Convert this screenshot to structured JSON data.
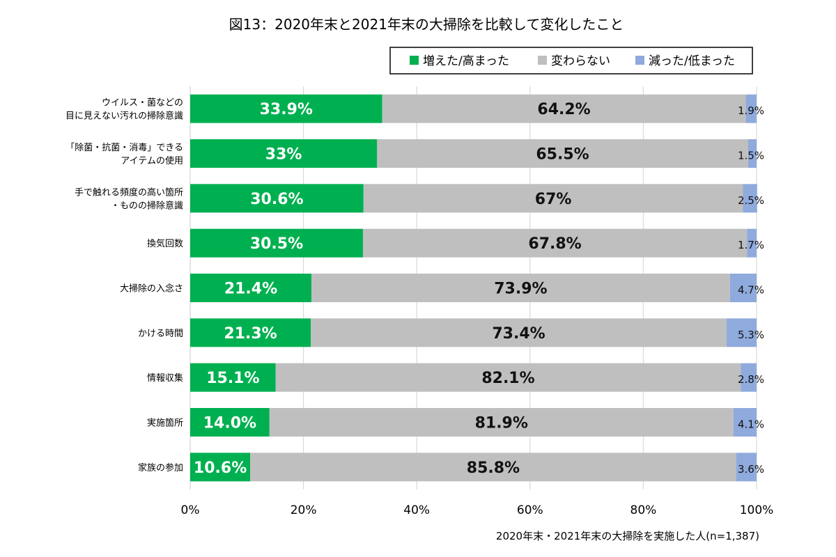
{
  "chart_data": {
    "type": "bar",
    "orientation": "horizontal",
    "stacked": true,
    "title": "図13：2020年末と2021年末の大掃除を比較して変化したこと",
    "xlabel": "2020年末・2021年末の大掃除を実施した人(n=1,387)",
    "ylabel": "",
    "xlim": [
      0,
      100
    ],
    "x_ticks": [
      "0%",
      "20%",
      "40%",
      "60%",
      "80%",
      "100%"
    ],
    "grid": true,
    "legend_position": "top-right",
    "categories": [
      [
        "ウイルス・菌などの",
        "目に見えない汚れの掃除意識"
      ],
      [
        "「除菌・抗菌・消毒」できる",
        "アイテムの使用"
      ],
      [
        "手で触れる頻度の高い箇所",
        "・ものの掃除意識"
      ],
      [
        "換気回数"
      ],
      [
        "大掃除の入念さ"
      ],
      [
        "かける時間"
      ],
      [
        "情報収集"
      ],
      [
        "実施箇所"
      ],
      [
        "家族の参加"
      ]
    ],
    "series": [
      {
        "name": "増えた/高まった",
        "color": "#00b050",
        "values": [
          33.9,
          33.0,
          30.6,
          30.5,
          21.4,
          21.3,
          15.1,
          14.0,
          10.6
        ],
        "labels": [
          "33.9%",
          "33%",
          "30.6%",
          "30.5%",
          "21.4%",
          "21.3%",
          "15.1%",
          "14.0%",
          "10.6%"
        ]
      },
      {
        "name": "変わらない",
        "color": "#bfbfbf",
        "values": [
          64.2,
          65.5,
          67.0,
          67.8,
          73.9,
          73.4,
          82.1,
          81.9,
          85.8
        ],
        "labels": [
          "64.2%",
          "65.5%",
          "67%",
          "67.8%",
          "73.9%",
          "73.4%",
          "82.1%",
          "81.9%",
          "85.8%"
        ]
      },
      {
        "name": "減った/低まった",
        "color": "#8faadc",
        "values": [
          1.9,
          1.5,
          2.5,
          1.7,
          4.7,
          5.3,
          2.8,
          4.1,
          3.6
        ],
        "labels": [
          "1.9%",
          "1.5%",
          "2.5%",
          "1.7%",
          "4.7%",
          "5.3%",
          "2.8%",
          "4.1%",
          "3.6%"
        ]
      }
    ]
  }
}
